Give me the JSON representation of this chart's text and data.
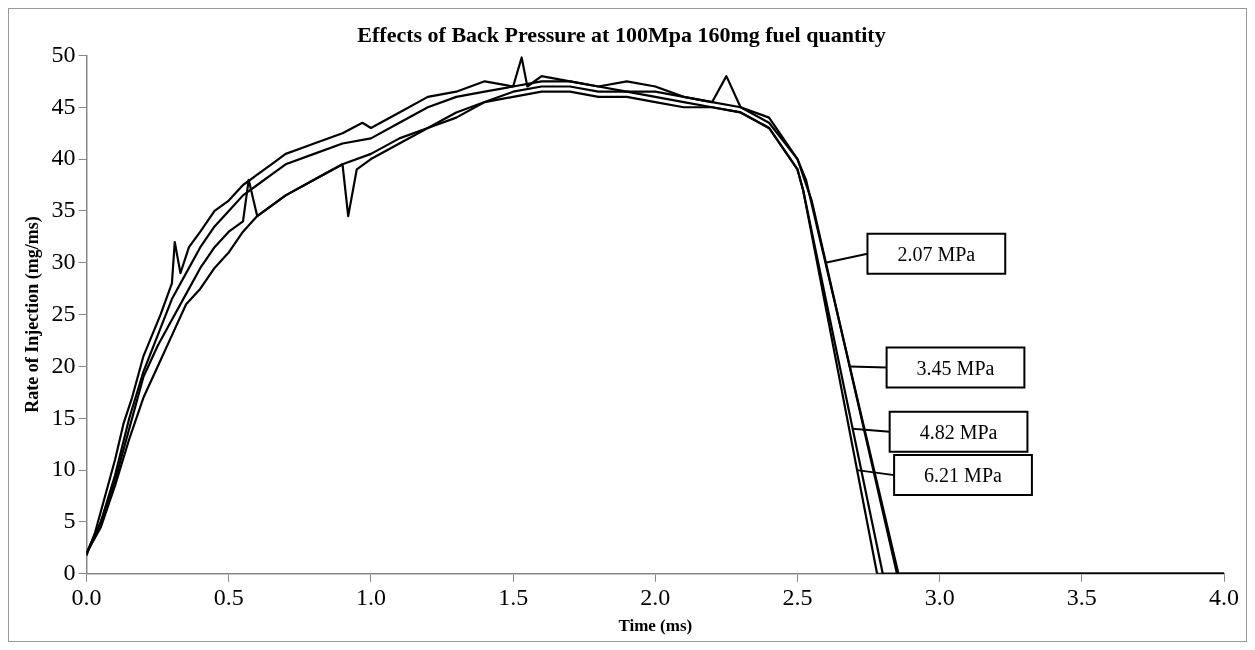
{
  "chart_data": {
    "type": "line",
    "title": "Effects of Back Pressure at 100Mpa 160mg fuel quantity",
    "xlabel": "Time (ms)",
    "ylabel": "Rate of Injection (mg/ms)",
    "xlim": [
      0,
      4
    ],
    "xticks": [
      {
        "value": 0,
        "label": "0.0"
      },
      {
        "value": 0.5,
        "label": "0.5"
      },
      {
        "value": 1,
        "label": "1.0"
      },
      {
        "value": 1.5,
        "label": "1.5"
      },
      {
        "value": 2,
        "label": "2.0"
      },
      {
        "value": 2.5,
        "label": "2.5"
      },
      {
        "value": 3,
        "label": "3.0"
      },
      {
        "value": 3.5,
        "label": "3.5"
      },
      {
        "value": 4,
        "label": "4.0"
      }
    ],
    "ylim": [
      0,
      50
    ],
    "yticks": [
      0,
      5,
      10,
      15,
      20,
      25,
      30,
      35,
      40,
      45,
      50
    ],
    "grid": false,
    "legend": "right",
    "marker": "none",
    "line_style": "solid",
    "series": [
      {
        "name": "2.07 MPa",
        "color": "#000000",
        "x": [
          0,
          0.03,
          0.06,
          0.1,
          0.13,
          0.16,
          0.2,
          0.23,
          0.26,
          0.3,
          0.31,
          0.33,
          0.36,
          0.4,
          0.45,
          0.5,
          0.55,
          0.6,
          0.65,
          0.7,
          0.75,
          0.8,
          0.9,
          0.97,
          1.0,
          1.1,
          1.2,
          1.3,
          1.4,
          1.5,
          1.53,
          1.55,
          1.6,
          1.7,
          1.8,
          1.9,
          2.0,
          2.1,
          2.2,
          2.25,
          2.3,
          2.4,
          2.45,
          2.5,
          2.53,
          2.855,
          4.0
        ],
        "values": [
          1.8,
          4,
          7,
          11,
          14.5,
          17,
          21,
          23,
          25,
          28,
          32,
          29,
          31.5,
          33,
          35,
          36,
          37.5,
          38.5,
          39.5,
          40.5,
          41,
          41.5,
          42.5,
          43.5,
          43,
          44.5,
          46,
          46.5,
          47.5,
          47,
          49.8,
          47,
          48,
          47.5,
          47,
          47.5,
          47,
          46,
          45.5,
          48,
          45,
          44,
          42,
          40,
          38,
          0,
          0
        ]
      },
      {
        "name": "3.45 MPa",
        "color": "#000000",
        "x": [
          0,
          0.05,
          0.1,
          0.15,
          0.2,
          0.25,
          0.3,
          0.35,
          0.4,
          0.45,
          0.5,
          0.55,
          0.6,
          0.65,
          0.7,
          0.8,
          0.9,
          1.0,
          1.1,
          1.2,
          1.3,
          1.4,
          1.5,
          1.6,
          1.7,
          1.8,
          1.9,
          2.0,
          2.1,
          2.2,
          2.3,
          2.4,
          2.5,
          2.55,
          2.85,
          4.0
        ],
        "values": [
          2,
          5,
          9.5,
          15,
          19.5,
          23,
          26.5,
          29,
          31.5,
          33.5,
          35,
          36.5,
          37.5,
          38.5,
          39.5,
          40.5,
          41.5,
          42,
          43.5,
          45,
          46,
          46.5,
          47,
          47.5,
          47.5,
          47,
          46.5,
          46.5,
          46,
          45.5,
          45,
          43.5,
          40,
          36,
          0,
          0
        ]
      },
      {
        "name": "4.82 MPa",
        "color": "#000000",
        "x": [
          0,
          0.05,
          0.1,
          0.15,
          0.2,
          0.25,
          0.3,
          0.35,
          0.4,
          0.45,
          0.5,
          0.55,
          0.57,
          0.6,
          0.7,
          0.8,
          0.9,
          0.92,
          0.95,
          1.0,
          1.1,
          1.2,
          1.3,
          1.4,
          1.5,
          1.6,
          1.7,
          1.8,
          1.9,
          2.0,
          2.1,
          2.2,
          2.3,
          2.4,
          2.5,
          2.52,
          2.8,
          4.0
        ],
        "values": [
          2,
          5,
          9,
          14,
          19,
          22,
          24.5,
          27,
          29.5,
          31.5,
          33,
          34,
          38,
          34.5,
          36.5,
          38,
          39.5,
          34.5,
          39,
          40,
          41.5,
          43,
          44.5,
          45.5,
          46.5,
          47,
          47,
          46.5,
          46.5,
          46,
          45.5,
          45,
          44.5,
          43,
          39,
          37,
          0,
          0
        ]
      },
      {
        "name": "6.21 MPa",
        "color": "#000000",
        "x": [
          0,
          0.05,
          0.1,
          0.15,
          0.2,
          0.25,
          0.3,
          0.35,
          0.4,
          0.45,
          0.5,
          0.55,
          0.6,
          0.7,
          0.8,
          0.9,
          1.0,
          1.1,
          1.2,
          1.3,
          1.4,
          1.5,
          1.6,
          1.7,
          1.8,
          1.9,
          2.0,
          2.1,
          2.2,
          2.3,
          2.4,
          2.5,
          2.52,
          2.78,
          4.0
        ],
        "values": [
          2,
          4.5,
          8.5,
          13,
          17,
          20,
          23,
          26,
          27.5,
          29.5,
          31,
          33,
          34.5,
          36.5,
          38,
          39.5,
          40.5,
          42,
          43,
          44,
          45.5,
          46,
          46.5,
          46.5,
          46,
          46,
          45.5,
          45,
          45,
          44.5,
          43,
          39,
          37,
          0,
          0
        ]
      }
    ]
  }
}
